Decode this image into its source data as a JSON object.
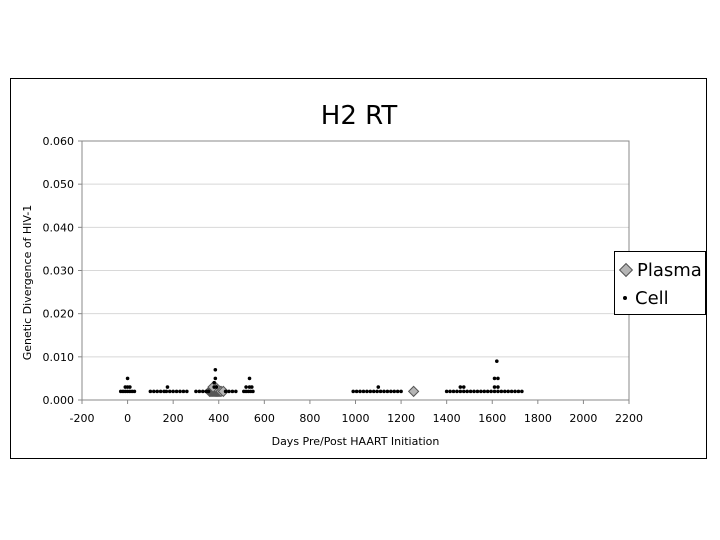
{
  "chart_data": {
    "type": "scatter",
    "title": "H2 RT",
    "xlabel": "Days   Pre/Post   HAART   Initiation",
    "ylabel": "Genetic   Divergence   of   HIV-1",
    "xlim": [
      -200,
      2200
    ],
    "ylim": [
      0,
      0.06
    ],
    "x_ticks": [
      "-200",
      "0",
      "200",
      "400",
      "600",
      "800",
      "1000",
      "1200",
      "1400",
      "1600",
      "1800",
      "2000",
      "2200"
    ],
    "y_ticks": [
      "0.000",
      "0.010",
      "0.020",
      "0.030",
      "0.040",
      "0.050",
      "0.060"
    ],
    "grid": "horizontal",
    "legend_position": "right",
    "series": [
      {
        "name": "Plasma",
        "marker": "diamond",
        "color": "#b5b5b5",
        "points": [
          [
            360,
            0.002
          ],
          [
            365,
            0.002
          ],
          [
            370,
            0.002
          ],
          [
            375,
            0.002
          ],
          [
            380,
            0.002
          ],
          [
            385,
            0.002
          ],
          [
            390,
            0.002
          ],
          [
            395,
            0.002
          ],
          [
            400,
            0.002
          ],
          [
            405,
            0.002
          ],
          [
            410,
            0.002
          ],
          [
            420,
            0.002
          ],
          [
            385,
            0.003
          ],
          [
            375,
            0.003
          ],
          [
            1255,
            0.002
          ]
        ]
      },
      {
        "name": "Cell",
        "marker": "dot",
        "color": "#000000",
        "points": [
          [
            -30,
            0.002
          ],
          [
            -20,
            0.002
          ],
          [
            -10,
            0.002
          ],
          [
            0,
            0.002
          ],
          [
            10,
            0.002
          ],
          [
            20,
            0.002
          ],
          [
            30,
            0.002
          ],
          [
            -10,
            0.003
          ],
          [
            0,
            0.003
          ],
          [
            10,
            0.003
          ],
          [
            0,
            0.005
          ],
          [
            100,
            0.002
          ],
          [
            115,
            0.002
          ],
          [
            130,
            0.002
          ],
          [
            145,
            0.002
          ],
          [
            160,
            0.002
          ],
          [
            170,
            0.002
          ],
          [
            185,
            0.002
          ],
          [
            200,
            0.002
          ],
          [
            215,
            0.002
          ],
          [
            230,
            0.002
          ],
          [
            245,
            0.002
          ],
          [
            260,
            0.002
          ],
          [
            175,
            0.003
          ],
          [
            300,
            0.002
          ],
          [
            315,
            0.002
          ],
          [
            330,
            0.002
          ],
          [
            345,
            0.002
          ],
          [
            355,
            0.002
          ],
          [
            430,
            0.002
          ],
          [
            445,
            0.002
          ],
          [
            460,
            0.002
          ],
          [
            475,
            0.002
          ],
          [
            390,
            0.003
          ],
          [
            380,
            0.004
          ],
          [
            385,
            0.005
          ],
          [
            385,
            0.007
          ],
          [
            380,
            0.003
          ],
          [
            510,
            0.002
          ],
          [
            520,
            0.002
          ],
          [
            530,
            0.002
          ],
          [
            540,
            0.002
          ],
          [
            550,
            0.002
          ],
          [
            520,
            0.003
          ],
          [
            535,
            0.003
          ],
          [
            545,
            0.003
          ],
          [
            535,
            0.005
          ],
          [
            990,
            0.002
          ],
          [
            1005,
            0.002
          ],
          [
            1020,
            0.002
          ],
          [
            1035,
            0.002
          ],
          [
            1050,
            0.002
          ],
          [
            1065,
            0.002
          ],
          [
            1080,
            0.002
          ],
          [
            1095,
            0.002
          ],
          [
            1110,
            0.002
          ],
          [
            1125,
            0.002
          ],
          [
            1140,
            0.002
          ],
          [
            1155,
            0.002
          ],
          [
            1170,
            0.002
          ],
          [
            1185,
            0.002
          ],
          [
            1200,
            0.002
          ],
          [
            1100,
            0.003
          ],
          [
            1400,
            0.002
          ],
          [
            1415,
            0.002
          ],
          [
            1430,
            0.002
          ],
          [
            1445,
            0.002
          ],
          [
            1460,
            0.002
          ],
          [
            1475,
            0.002
          ],
          [
            1490,
            0.002
          ],
          [
            1505,
            0.002
          ],
          [
            1520,
            0.002
          ],
          [
            1535,
            0.002
          ],
          [
            1550,
            0.002
          ],
          [
            1565,
            0.002
          ],
          [
            1580,
            0.002
          ],
          [
            1595,
            0.002
          ],
          [
            1610,
            0.002
          ],
          [
            1625,
            0.002
          ],
          [
            1640,
            0.002
          ],
          [
            1655,
            0.002
          ],
          [
            1670,
            0.002
          ],
          [
            1685,
            0.002
          ],
          [
            1700,
            0.002
          ],
          [
            1715,
            0.002
          ],
          [
            1730,
            0.002
          ],
          [
            1460,
            0.003
          ],
          [
            1475,
            0.003
          ],
          [
            1610,
            0.003
          ],
          [
            1625,
            0.003
          ],
          [
            1610,
            0.005
          ],
          [
            1625,
            0.005
          ],
          [
            1620,
            0.009
          ]
        ]
      }
    ]
  }
}
